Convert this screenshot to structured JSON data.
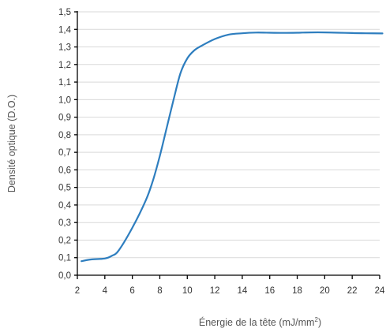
{
  "chart_data": {
    "type": "line",
    "title": "",
    "xlabel": "Énergie de la tête (mJ/mm²)",
    "xlabel_main": "Énergie de la tête (mJ/mm",
    "xlabel_sup": "2",
    "xlabel_end": ")",
    "ylabel": "Densité optique (D.O.)",
    "xlim": [
      2,
      24
    ],
    "ylim": [
      0,
      1.5
    ],
    "xticks": [
      2,
      4,
      6,
      8,
      10,
      12,
      14,
      16,
      18,
      20,
      22,
      24
    ],
    "yticks": [
      "0,0",
      "0,1",
      "0,2",
      "0,3",
      "0,4",
      "0,5",
      "0,6",
      "0,7",
      "0,8",
      "0,9",
      "1,0",
      "1,1",
      "1,2",
      "1,3",
      "1,4",
      "1,5"
    ],
    "grid": "horizontal",
    "series_color": "#2e7ebf",
    "series": [
      {
        "x": [
          2.3,
          3.0,
          4.0,
          4.5,
          5.0,
          6.0,
          7.0,
          7.5,
          8.0,
          8.5,
          9.0,
          9.5,
          10.0,
          10.5,
          11.0,
          12.0,
          13.0,
          14.0,
          15.0,
          16.0,
          17.0,
          18.0,
          19.0,
          20.0,
          21.0,
          22.0,
          23.0,
          24.2
        ],
        "y": [
          0.08,
          0.09,
          0.095,
          0.11,
          0.14,
          0.27,
          0.43,
          0.54,
          0.68,
          0.84,
          1.0,
          1.15,
          1.235,
          1.28,
          1.305,
          1.345,
          1.37,
          1.378,
          1.382,
          1.381,
          1.38,
          1.381,
          1.383,
          1.383,
          1.381,
          1.379,
          1.378,
          1.377
        ]
      }
    ]
  }
}
